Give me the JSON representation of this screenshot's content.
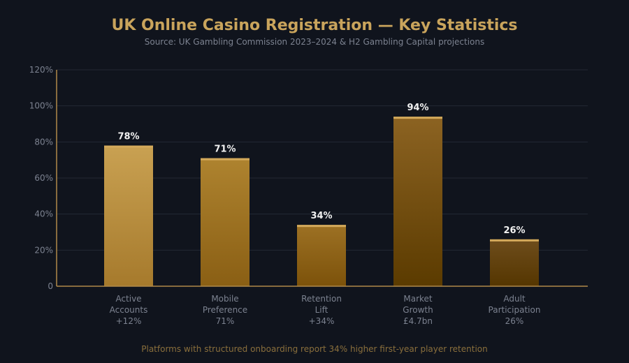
{
  "chart_data": {
    "type": "bar",
    "title": "UK Online Casino Registration — Key Statistics",
    "subtitle": "Source: UK Gambling Commission 2023–2024 & H2 Gambling Capital projections",
    "categories": [
      [
        "Active",
        "Accounts",
        "+12%"
      ],
      [
        "Mobile",
        "Preference",
        "71%"
      ],
      [
        "Retention",
        "Lift",
        "+34%"
      ],
      [
        "Market",
        "Growth",
        "£4.7bn"
      ],
      [
        "Adult",
        "Participation",
        "26%"
      ]
    ],
    "values": [
      78,
      71,
      34,
      94,
      26
    ],
    "value_labels": [
      "78%",
      "71%",
      "34%",
      "94%",
      "26%"
    ],
    "ylim": [
      0,
      120
    ],
    "yticks": [
      0,
      20,
      40,
      60,
      80,
      100,
      120
    ],
    "ytick_labels": [
      "0",
      "20%",
      "40%",
      "60%",
      "80%",
      "100%",
      "120%"
    ],
    "grid": true,
    "footer": "Platforms with structured onboarding report 34% higher first-year player retention",
    "colors": {
      "title": "#c9a45c",
      "axis": "#b08a4a",
      "footer": "#8a6f3c",
      "cap": "#d4aa5c",
      "bar_gradients": [
        [
          "#c9a152",
          "#a67a2c"
        ],
        [
          "#ae832f",
          "#8a5f14"
        ],
        [
          "#9d7124",
          "#7c520a"
        ],
        [
          "#8c6322",
          "#5b3b00"
        ],
        [
          "#6e4d1c",
          "#553600"
        ]
      ]
    }
  }
}
